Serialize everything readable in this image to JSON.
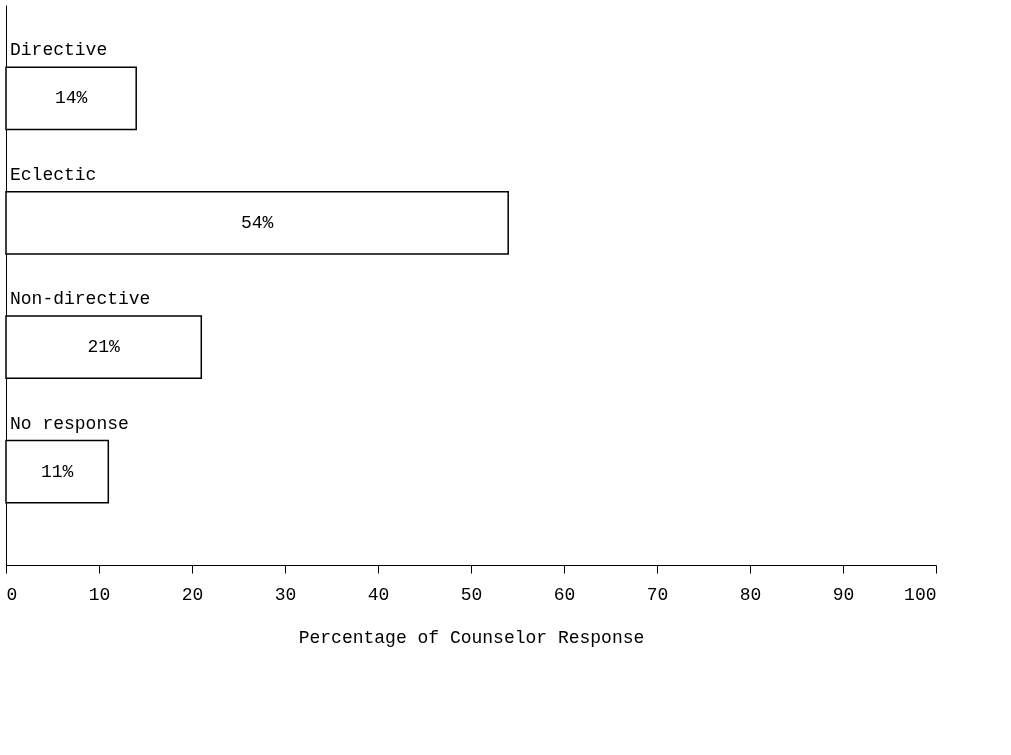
{
  "chart_data": {
    "type": "bar",
    "orientation": "horizontal",
    "xlabel": "Percentage of Counselor Response",
    "categories": [
      "Directive",
      "Eclectic",
      "Non-directive",
      "No response"
    ],
    "values": [
      14,
      54,
      21,
      11
    ],
    "value_labels": [
      "14%",
      "54%",
      "21%",
      "11%"
    ],
    "color": "#ffffff",
    "xlim": [
      0,
      100
    ],
    "xticks": [
      0,
      10,
      20,
      30,
      40,
      50,
      60,
      70,
      80,
      90,
      100
    ],
    "grid": false
  }
}
